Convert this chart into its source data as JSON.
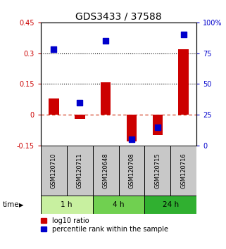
{
  "title": "GDS3433 / 37588",
  "samples": [
    "GSM120710",
    "GSM120711",
    "GSM120648",
    "GSM120708",
    "GSM120715",
    "GSM120716"
  ],
  "log10_ratio": [
    0.08,
    -0.02,
    0.16,
    -0.13,
    -0.1,
    0.32
  ],
  "percentile_rank": [
    78,
    35,
    85,
    5,
    15,
    90
  ],
  "groups": [
    {
      "label": "1 h",
      "indices": [
        0,
        1
      ],
      "color": "#c8f0a0"
    },
    {
      "label": "4 h",
      "indices": [
        2,
        3
      ],
      "color": "#70d050"
    },
    {
      "label": "24 h",
      "indices": [
        4,
        5
      ],
      "color": "#30b030"
    }
  ],
  "bar_color": "#cc0000",
  "dot_color": "#0000cc",
  "ylim_left": [
    -0.15,
    0.45
  ],
  "ylim_right": [
    0,
    100
  ],
  "bar_width": 0.4,
  "dot_size": 35,
  "title_fontsize": 10,
  "tick_fontsize": 7,
  "label_fontsize": 7.5,
  "legend_fontsize": 7,
  "sample_box_color": "#c8c8c8",
  "time_label": "time",
  "legend_items": [
    "log10 ratio",
    "percentile rank within the sample"
  ]
}
